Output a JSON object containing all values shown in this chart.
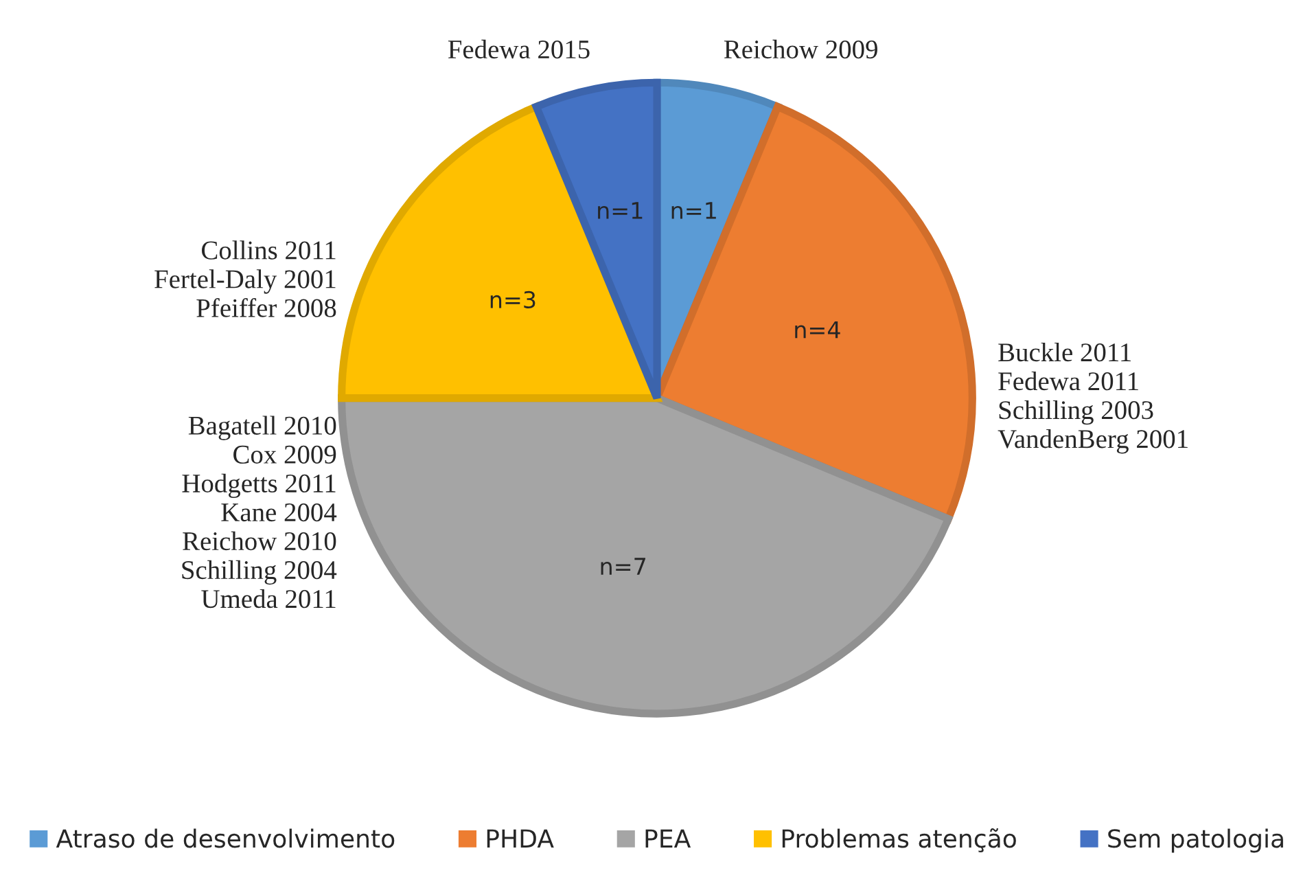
{
  "chart_data": {
    "type": "pie",
    "categories": [
      "Atraso de desenvolvimento",
      "PHDA",
      "PEA",
      "Problemas atenção",
      "Sem patologia"
    ],
    "values": [
      1,
      4,
      7,
      3,
      1
    ],
    "value_labels": [
      "n=1",
      "n=4",
      "n=7",
      "n=3",
      "n=1"
    ],
    "colors": [
      "#5b9bd5",
      "#ed7d31",
      "#a5a5a5",
      "#ffc000",
      "#4472c4"
    ],
    "annotations": [
      "Reichow 2009",
      "Buckle 2011\nFedewa 2011\nSchilling 2003\nVandenBerg 2001",
      "Bagatell 2010\nCox 2009\nHodgetts 2011\nKane 2004\nReichow 2010\nSchilling 2004\nUmeda 2011",
      "Collins 2011\nFertel-Daly 2001\nPfeiffer 2008",
      "Fedewa 2015"
    ],
    "legend": "bottom"
  }
}
